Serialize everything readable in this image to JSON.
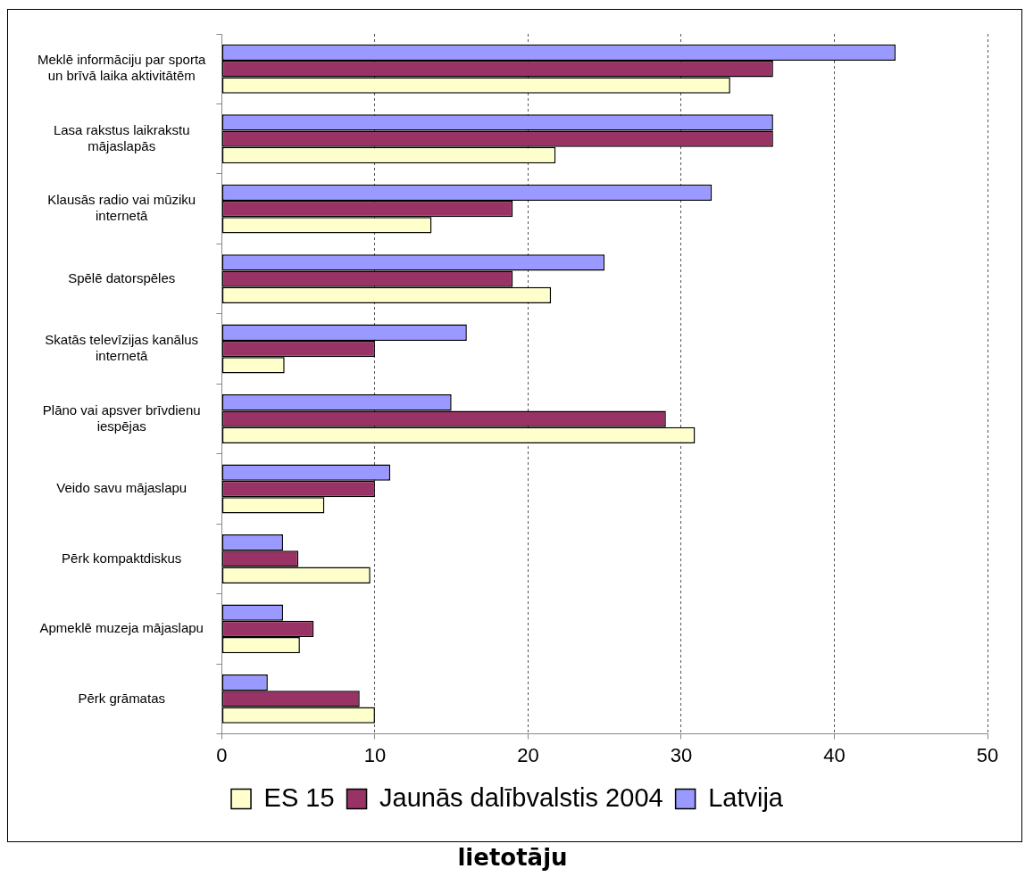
{
  "chart_data": {
    "type": "bar",
    "orientation": "horizontal",
    "xlabel": "lietotāju",
    "categories": [
      "Meklē informāciju par sporta\nun brīvā laika aktivitātēm",
      "Lasa rakstus laikrakstu\nmājaslapās",
      "Klausās radio vai mūziku\ninternetā",
      "Spēlē datorspēles",
      "Skatās televīzijas kanālus\ninternetā",
      "Plāno vai apsver brīvdienu\niespējas",
      "Veido savu mājaslapu",
      "Pērk kompaktdiskus",
      "Apmeklē muzeja mājaslapu",
      "Pērk grāmatas"
    ],
    "series": [
      {
        "name": "ES 15",
        "color": "#ffffcc",
        "values": [
          33.2,
          21.8,
          13.7,
          21.5,
          4.1,
          30.9,
          6.7,
          9.7,
          5.1,
          10
        ]
      },
      {
        "name": "Jaunās dalībvalstis 2004",
        "color": "#993366",
        "values": [
          36,
          36,
          19,
          19,
          10,
          29,
          10,
          5,
          6,
          9
        ]
      },
      {
        "name": "Latvija",
        "color": "#9999ff",
        "values": [
          44,
          36,
          32,
          25,
          16,
          15,
          11,
          4,
          4,
          3
        ]
      }
    ],
    "xlim": [
      0,
      50
    ],
    "xticks": [
      0,
      10,
      20,
      30,
      40,
      50
    ],
    "grid": "x",
    "legend": "bottom"
  }
}
